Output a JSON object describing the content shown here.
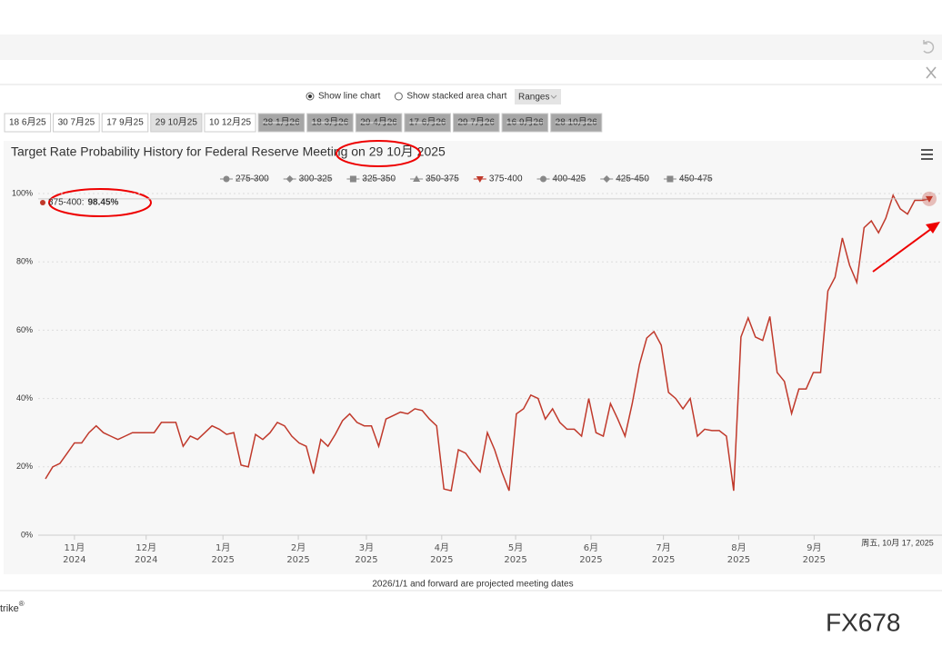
{
  "toolbar": {
    "options": [
      "Show line chart",
      "Show stacked area chart"
    ],
    "selected_option": 0,
    "ranges": "Ranges"
  },
  "meetings": [
    {
      "label": "18 6月25",
      "state": "normal"
    },
    {
      "label": "30 7月25",
      "state": "normal"
    },
    {
      "label": "17 9月25",
      "state": "normal"
    },
    {
      "label": "29 10月25",
      "state": "selected"
    },
    {
      "label": "10 12月25",
      "state": "normal"
    },
    {
      "label": "28 1月26",
      "state": "projected"
    },
    {
      "label": "18 3月26",
      "state": "projected"
    },
    {
      "label": "29 4月26",
      "state": "projected"
    },
    {
      "label": "17 6月26",
      "state": "projected"
    },
    {
      "label": "29 7月26",
      "state": "projected"
    },
    {
      "label": "16 9月26",
      "state": "projected"
    },
    {
      "label": "28 10月26",
      "state": "projected"
    }
  ],
  "chart_data": {
    "type": "line",
    "title": "Target Rate Probability History for Federal Reserve Meeting on 29 10月 2025",
    "legend": [
      {
        "name": "275-300",
        "marker": "circle",
        "hidden": true
      },
      {
        "name": "300-325",
        "marker": "diamond",
        "hidden": true
      },
      {
        "name": "325-350",
        "marker": "square",
        "hidden": true
      },
      {
        "name": "350-375",
        "marker": "triangle",
        "hidden": true
      },
      {
        "name": "375-400",
        "marker": "triangle-down",
        "hidden": false
      },
      {
        "name": "400-425",
        "marker": "circle",
        "hidden": true
      },
      {
        "name": "425-450",
        "marker": "diamond",
        "hidden": true
      },
      {
        "name": "450-475",
        "marker": "square",
        "hidden": true
      }
    ],
    "series": [
      {
        "name": "375-400",
        "color": "#c0392b",
        "values": [
          16.5,
          20,
          21,
          24,
          27,
          27,
          30,
          32,
          30,
          29,
          28,
          29,
          30,
          30,
          30,
          30,
          33,
          33,
          33,
          26,
          29,
          28,
          30,
          32,
          31,
          29.5,
          30,
          20.5,
          20,
          29.5,
          28,
          30,
          33,
          32,
          29,
          27,
          26,
          18,
          28,
          26,
          29.5,
          33.5,
          35.5,
          33,
          32,
          32,
          26,
          34,
          35,
          36,
          35.5,
          37,
          36.5,
          34,
          32,
          13.5,
          13,
          25,
          24,
          21,
          18.5,
          30,
          25,
          18.5,
          13,
          35.5,
          37,
          41,
          40,
          34,
          37,
          33,
          31,
          31,
          29,
          40,
          30,
          29,
          38.5,
          34,
          29,
          38.5,
          50,
          57.7,
          59.6,
          55.6,
          41.8,
          40,
          37,
          40,
          29,
          31,
          30.6,
          30.6,
          29,
          13,
          58,
          63.6,
          58,
          57,
          64,
          47.6,
          45,
          35.6,
          42.8,
          42.8,
          47.6,
          47.6,
          71.5,
          75.5,
          87,
          79,
          74,
          90,
          92,
          88.5,
          92.8,
          99.5,
          95.5,
          94,
          98,
          98,
          98.45
        ]
      }
    ],
    "tooltip": "375-400:",
    "tooltip_value": "98.45%",
    "crosshair_date": "周五, 10月 17, 2025",
    "xlim": [
      0,
      122
    ],
    "xticks": [
      {
        "value": 4,
        "label": "11月 2024"
      },
      {
        "value": 13.9,
        "label": "12月 2024"
      },
      {
        "value": 24.5,
        "label": "1月 2025"
      },
      {
        "value": 34.9,
        "label": "2月 2025"
      },
      {
        "value": 44.3,
        "label": "3月 2025"
      },
      {
        "value": 54.7,
        "label": "4月 2025"
      },
      {
        "value": 64.9,
        "label": "5月 2025"
      },
      {
        "value": 75.3,
        "label": "6月 2025"
      },
      {
        "value": 85.3,
        "label": "7月 2025"
      },
      {
        "value": 95.7,
        "label": "8月 2025"
      },
      {
        "value": 106.1,
        "label": "9月 2025"
      }
    ],
    "ylim": [
      0,
      100
    ],
    "yticks": [
      {
        "value": 0,
        "label": "0%"
      },
      {
        "value": 20,
        "label": "20%"
      },
      {
        "value": 40,
        "label": "40%"
      },
      {
        "value": 60,
        "label": "60%"
      },
      {
        "value": 80,
        "label": "80%"
      },
      {
        "value": 100,
        "label": "100%"
      }
    ],
    "grid": true
  },
  "note": "2026/1/1 and forward are projected meeting dates",
  "footer": {
    "brand": "trike",
    "mark": "®"
  },
  "watermark": "FX678"
}
